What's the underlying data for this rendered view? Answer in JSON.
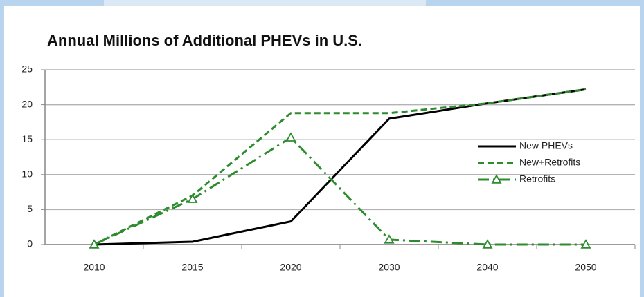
{
  "chart_data": {
    "type": "line",
    "title": "Annual Millions of Additional PHEVs in U.S.",
    "categories": [
      "2010",
      "2015",
      "2020",
      "2030",
      "2040",
      "2050"
    ],
    "series": [
      {
        "name": "New PHEVs",
        "color": "#000000",
        "style": "solid",
        "values": [
          0,
          0.4,
          3.3,
          18,
          20.2,
          22.2
        ]
      },
      {
        "name": "New+Retrofits",
        "color": "#2e8b2e",
        "style": "dashed",
        "values": [
          0,
          7,
          18.8,
          18.8,
          20.2,
          22.2
        ]
      },
      {
        "name": "Retrofits",
        "color": "#2e8b2e",
        "style": "dashdot",
        "marker": "triangle",
        "values": [
          0,
          6.5,
          15.3,
          0.7,
          0,
          0
        ]
      }
    ],
    "ylim": [
      0,
      25
    ],
    "yticks": [
      0,
      5,
      10,
      15,
      20,
      25
    ],
    "grid": true,
    "legend": "right"
  }
}
